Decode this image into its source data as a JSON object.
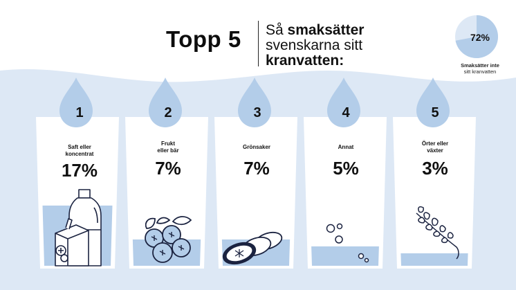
{
  "header": {
    "title": "Topp 5",
    "subtitle_line1_plain": "Så ",
    "subtitle_line1_bold": "smaksätter",
    "subtitle_line2": "svenskarna sitt",
    "subtitle_line3": "kranvatten:"
  },
  "pie": {
    "percent_label": "72%",
    "percent_value": 72,
    "note_line1": "Smaksätter inte",
    "note_line2": "sitt kranvatten"
  },
  "colors": {
    "light_blue": "#dde8f5",
    "mid_blue": "#b3cde9",
    "dark_navy": "#1b2340"
  },
  "items": [
    {
      "rank": "1",
      "label_line1": "Saft eller",
      "label_line2": "koncentrat",
      "percent": "17%",
      "icon": "juice-bottle-and-carton-icon"
    },
    {
      "rank": "2",
      "label_line1": "Frukt",
      "label_line2": "eller bär",
      "percent": "7%",
      "icon": "blueberries-icon"
    },
    {
      "rank": "3",
      "label_line1": "Grönsaker",
      "label_line2": "",
      "percent": "7%",
      "icon": "cucumber-slices-icon"
    },
    {
      "rank": "4",
      "label_line1": "Annat",
      "label_line2": "",
      "percent": "5%",
      "icon": "bubbles-icon"
    },
    {
      "rank": "5",
      "label_line1": "Örter eller",
      "label_line2": "växter",
      "percent": "3%",
      "icon": "herb-sprig-icon"
    }
  ]
}
